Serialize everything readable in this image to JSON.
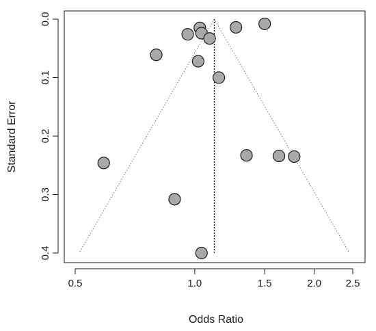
{
  "chart_data": {
    "type": "scatter",
    "title": "",
    "xlabel": "Odds Ratio",
    "ylabel": "Standard Error",
    "x_scale": "log",
    "y_reversed": true,
    "xlim": [
      0.5,
      2.5
    ],
    "ylim": [
      0.0,
      0.4
    ],
    "x_ticks": [
      0.5,
      1.0,
      1.5,
      2.0,
      2.5
    ],
    "x_tick_labels": [
      "0.5",
      "1.0",
      "1.5",
      "2.0",
      "2.5"
    ],
    "y_ticks": [
      0.0,
      0.1,
      0.2,
      0.3,
      0.4
    ],
    "y_tick_labels": [
      "0.0",
      "0.1",
      "0.2",
      "0.3",
      "0.4"
    ],
    "grid": false,
    "pooled_estimate": 1.12,
    "funnel_limits": {
      "se_max": 0.4,
      "z": 1.96
    },
    "points": [
      {
        "x": 1.03,
        "y": 0.015
      },
      {
        "x": 0.96,
        "y": 0.026
      },
      {
        "x": 1.04,
        "y": 0.024
      },
      {
        "x": 1.09,
        "y": 0.033
      },
      {
        "x": 1.27,
        "y": 0.014
      },
      {
        "x": 1.5,
        "y": 0.008
      },
      {
        "x": 0.8,
        "y": 0.061
      },
      {
        "x": 1.02,
        "y": 0.072
      },
      {
        "x": 1.15,
        "y": 0.1
      },
      {
        "x": 0.59,
        "y": 0.246
      },
      {
        "x": 1.35,
        "y": 0.233
      },
      {
        "x": 1.63,
        "y": 0.234
      },
      {
        "x": 1.78,
        "y": 0.235
      },
      {
        "x": 0.89,
        "y": 0.308
      },
      {
        "x": 1.04,
        "y": 0.4
      }
    ]
  }
}
